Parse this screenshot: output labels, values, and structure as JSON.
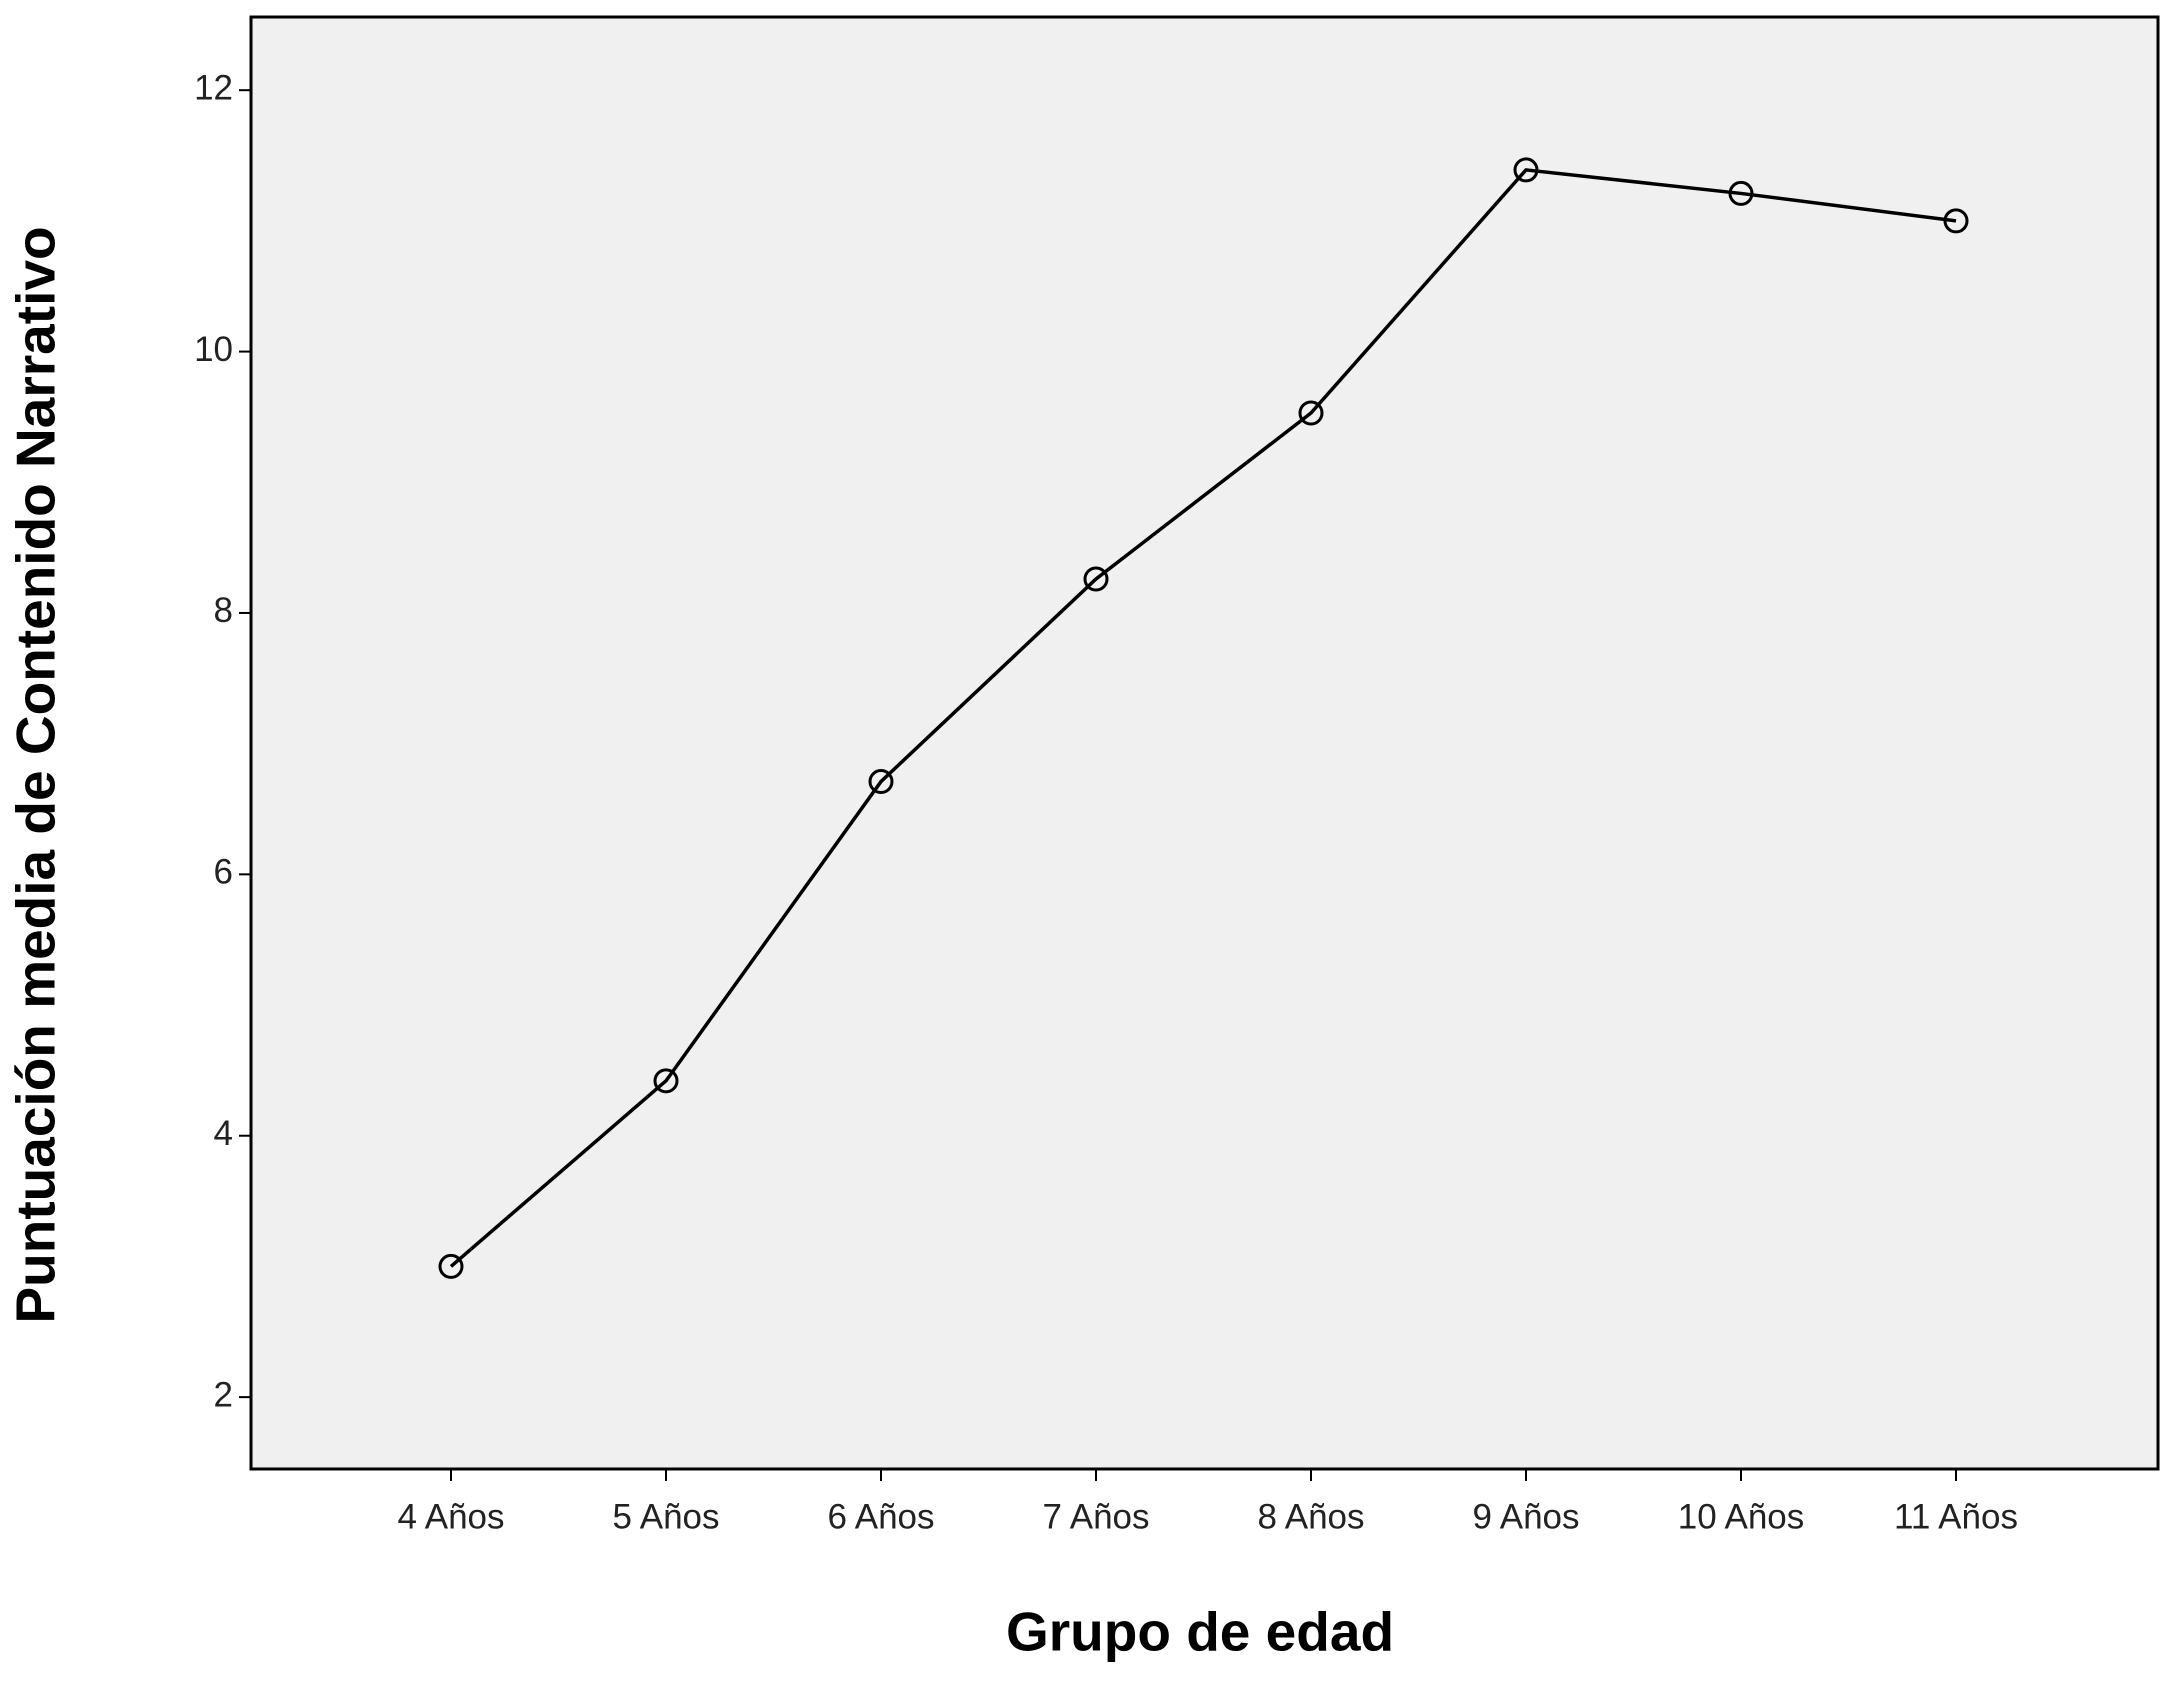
{
  "chart_data": {
    "type": "line",
    "x_label": "Grupo de edad",
    "y_label": "Puntuación media de Contenido Narrativo",
    "categories": [
      "4 Años",
      "5 Años",
      "6 Años",
      "7 Años",
      "8 Años",
      "9 Años",
      "10 Años",
      "11 Años"
    ],
    "values": [
      3.0,
      4.42,
      6.71,
      8.26,
      9.53,
      11.39,
      11.21,
      11.0
    ],
    "color": "#000000",
    "background": "#f0f0f0",
    "ylim": [
      1.45,
      12.56
    ],
    "yticks": [
      2,
      4,
      6,
      8,
      10,
      12
    ],
    "grid": false
  }
}
